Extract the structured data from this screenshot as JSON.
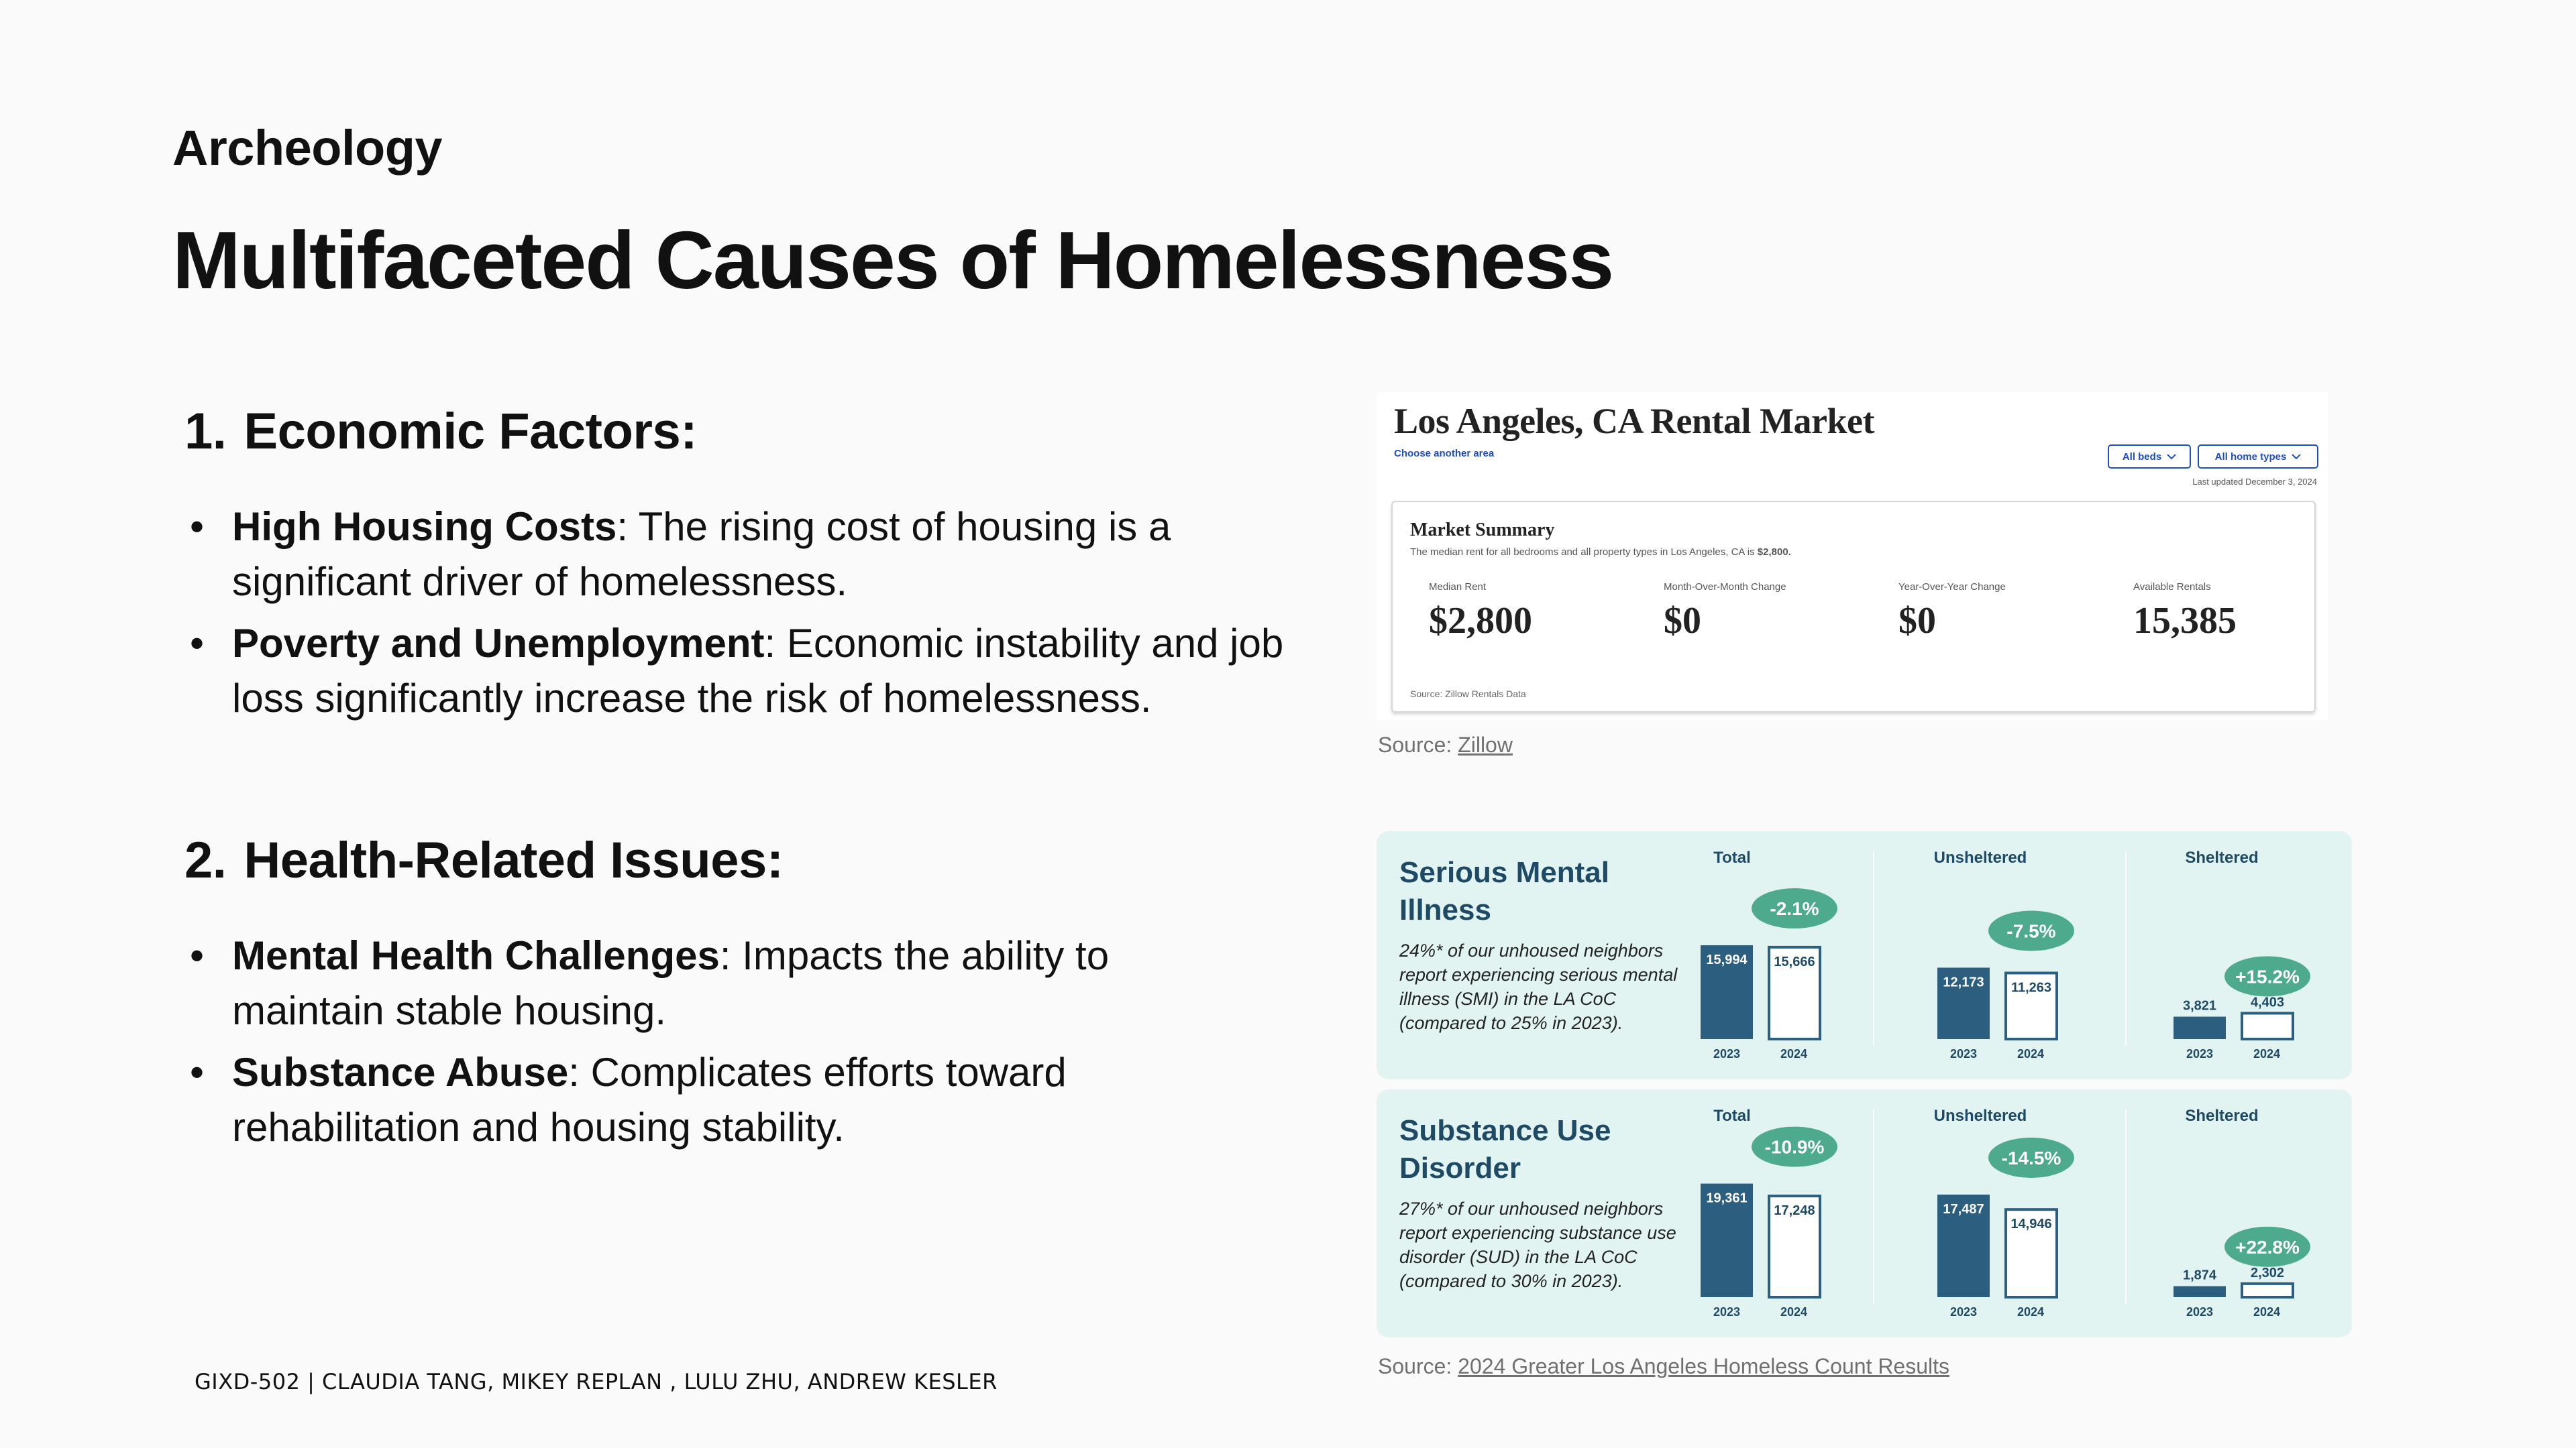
{
  "slide": {
    "eyebrow": "Archeology",
    "title": "Multifaceted Causes of Homelessness",
    "footer": "GIXD-502 | CLAUDIA TANG, MIKEY REPLAN , LULU ZHU, ANDREW KESLER"
  },
  "sections": [
    {
      "number": "1.",
      "title": "Economic Factors:",
      "bullets": [
        {
          "bold": "High Housing Costs",
          "text": ": The rising cost of housing is a significant driver of homelessness."
        },
        {
          "bold": "Poverty and Unemployment",
          "text": ": Economic instability and job loss significantly increase the risk of homelessness."
        }
      ]
    },
    {
      "number": "2.",
      "title": "Health-Related Issues:",
      "bullets": [
        {
          "bold": "Mental Health Challenges",
          "text": ": Impacts the ability to maintain stable housing."
        },
        {
          "bold": "Substance Abuse",
          "text": ": Complicates efforts toward rehabilitation and housing stability."
        }
      ]
    }
  ],
  "zillow": {
    "title": "Los Angeles, CA Rental Market",
    "choose_area": "Choose another area",
    "beds_dropdown": "All beds",
    "home_types_dropdown": "All home types",
    "updated": "Last updated December 3, 2024",
    "summary_title": "Market Summary",
    "summary_desc_prefix": "The median rent for all bedrooms and all property types in Los Angeles, CA is ",
    "summary_desc_value": "$2,800.",
    "stats": [
      {
        "label": "Median Rent",
        "value": "$2,800"
      },
      {
        "label": "Month-Over-Month Change",
        "value": "$0"
      },
      {
        "label": "Year-Over-Year Change",
        "value": "$0"
      },
      {
        "label": "Available Rentals",
        "value": "15,385"
      }
    ],
    "data_source": "Source: Zillow Rentals Data"
  },
  "source1": {
    "prefix": "Source: ",
    "link": "Zillow"
  },
  "source2": {
    "prefix": "Source: ",
    "link": "2024 Greater Los Angeles Homeless Count Results"
  },
  "colors": {
    "bar_fill": "#2c5e80",
    "badge": "#4daa8c",
    "panel_bg": "#e2f4f1",
    "heading": "#1f4a66"
  },
  "chart_data": [
    {
      "type": "bar",
      "title": "Serious Mental Illness",
      "description": "24%* of our unhoused neighbors report experiencing serious mental illness (SMI) in the LA CoC (compared to 25% in 2023).",
      "categories": [
        "2023",
        "2024"
      ],
      "groups": [
        {
          "name": "Total",
          "values": [
            15994
          ],
          "labels": [
            "15,994",
            "15,666"
          ],
          "values_2024": [
            15666
          ],
          "change": "-2.1%"
        },
        {
          "name": "Unsheltered",
          "labels": [
            "12,173",
            "11,263"
          ],
          "values_pair": [
            12173,
            11263
          ],
          "change": "-7.5%"
        },
        {
          "name": "Sheltered",
          "labels": [
            "3,821",
            "4,403"
          ],
          "values_pair": [
            3821,
            4403
          ],
          "change": "+15.2%"
        }
      ]
    },
    {
      "type": "bar",
      "title": "Substance Use Disorder",
      "description": "27%* of our unhoused neighbors report experiencing substance use disorder (SUD) in the LA CoC (compared to 30% in 2023).",
      "categories": [
        "2023",
        "2024"
      ],
      "groups": [
        {
          "name": "Total",
          "labels": [
            "19,361",
            "17,248"
          ],
          "values_pair": [
            19361,
            17248
          ],
          "change": "-10.9%"
        },
        {
          "name": "Unsheltered",
          "labels": [
            "17,487",
            "14,946"
          ],
          "values_pair": [
            17487,
            14946
          ],
          "change": "-14.5%"
        },
        {
          "name": "Sheltered",
          "labels": [
            "1,874",
            "2,302"
          ],
          "values_pair": [
            1874,
            2302
          ],
          "change": "+22.8%"
        }
      ]
    }
  ]
}
